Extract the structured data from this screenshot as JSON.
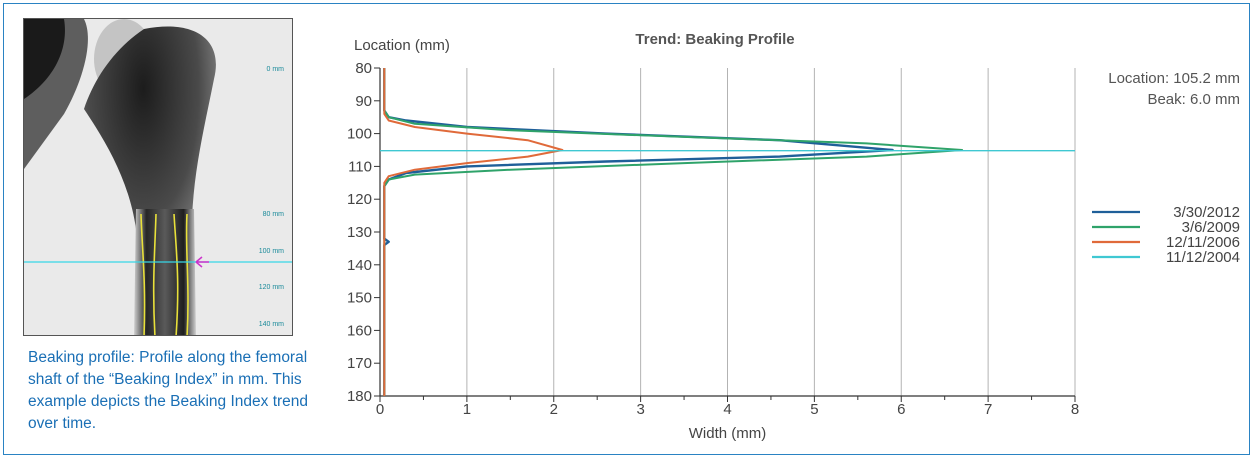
{
  "caption": "Beaking profile: Profile along the femoral shaft of the “Beaking Index” in mm. This example depicts the Beaking Index trend over time.",
  "xray": {
    "tick_labels": [
      {
        "label": "0 mm",
        "mm": 0
      },
      {
        "label": "80 mm",
        "mm": 80
      },
      {
        "label": "100 mm",
        "mm": 100
      },
      {
        "label": "120 mm",
        "mm": 120
      },
      {
        "label": "140 mm",
        "mm": 140
      }
    ],
    "colors": {
      "profile_line": "#e8e03a",
      "location_line": "#37d6e6",
      "marker": "#cc33cc"
    }
  },
  "chart_data": {
    "type": "line",
    "title": "Trend: Beaking Profile",
    "ylabel": "Location (mm)",
    "xlabel": "Width (mm)",
    "xlim": [
      0,
      8
    ],
    "ylim": [
      80,
      180
    ],
    "y_inverted": true,
    "xticks": [
      0,
      1,
      2,
      3,
      4,
      5,
      6,
      7,
      8
    ],
    "yticks": [
      80,
      90,
      100,
      110,
      120,
      130,
      140,
      150,
      160,
      170,
      180
    ],
    "grid": "vertical",
    "annotation": {
      "location": "Location: 105.2 mm",
      "beak": "Beak: 6.0 mm"
    },
    "legend_position": "right",
    "series": [
      {
        "name": "3/30/2012",
        "color": "#1f5f99",
        "x": [
          0.05,
          0.05,
          0.1,
          0.3,
          1.0,
          2.6,
          4.6,
          5.9,
          4.6,
          2.6,
          1.0,
          0.3,
          0.1,
          0.05,
          0.05,
          0.1,
          0.05,
          0.05,
          0.05
        ],
        "y": [
          80,
          93,
          95,
          96,
          98,
          100,
          102,
          105,
          107,
          108.5,
          110,
          112,
          114,
          116,
          132,
          133,
          134,
          160,
          180
        ]
      },
      {
        "name": "3/6/2009",
        "color": "#2fa36a",
        "x": [
          0.05,
          0.05,
          0.1,
          0.4,
          1.5,
          3.5,
          5.6,
          6.7,
          5.6,
          3.5,
          1.5,
          0.4,
          0.1,
          0.05,
          0.05
        ],
        "y": [
          80,
          93,
          95,
          97,
          99,
          101,
          103,
          105,
          107,
          109,
          111,
          112.5,
          114,
          116,
          180
        ]
      },
      {
        "name": "12/11/2006",
        "color": "#e06a3a",
        "x": [
          0.05,
          0.05,
          0.1,
          0.4,
          1.0,
          1.7,
          2.1,
          1.7,
          1.0,
          0.4,
          0.1,
          0.05,
          0.05
        ],
        "y": [
          80,
          94,
          96,
          98,
          100,
          102,
          105,
          107,
          109,
          111,
          113,
          115,
          180
        ]
      },
      {
        "name": "11/12/2004",
        "color": "#3fc8d2",
        "x": [
          0,
          8
        ],
        "y": [
          105.2,
          105.2
        ]
      }
    ]
  }
}
